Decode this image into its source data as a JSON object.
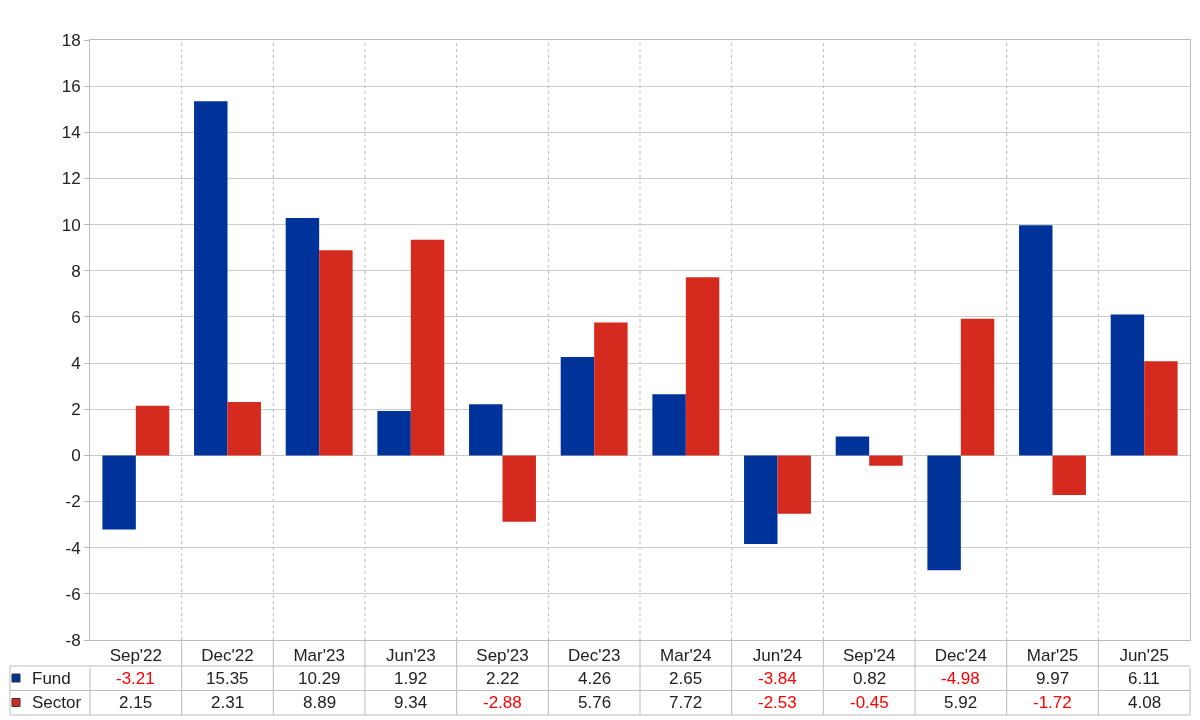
{
  "chart_data": {
    "type": "bar",
    "categories": [
      "Sep'22",
      "Dec'22",
      "Mar'23",
      "Jun'23",
      "Sep'23",
      "Dec'23",
      "Mar'24",
      "Jun'24",
      "Sep'24",
      "Dec'24",
      "Mar'25",
      "Jun'25"
    ],
    "series": [
      {
        "name": "Fund",
        "color": "#003399",
        "values": [
          -3.21,
          15.35,
          10.29,
          1.92,
          2.22,
          4.26,
          2.65,
          -3.84,
          0.82,
          -4.98,
          9.97,
          6.11
        ]
      },
      {
        "name": "Sector",
        "color": "#d52b1e",
        "values": [
          2.15,
          2.31,
          8.89,
          9.34,
          -2.88,
          5.76,
          7.72,
          -2.53,
          -0.45,
          5.92,
          -1.72,
          4.08
        ]
      }
    ],
    "ylim": [
      -8,
      18
    ],
    "yticks": [
      -8,
      -6,
      -4,
      -2,
      0,
      2,
      4,
      6,
      8,
      10,
      12,
      14,
      16,
      18
    ],
    "grid": true,
    "data_labels": true,
    "legend": "bottom"
  }
}
